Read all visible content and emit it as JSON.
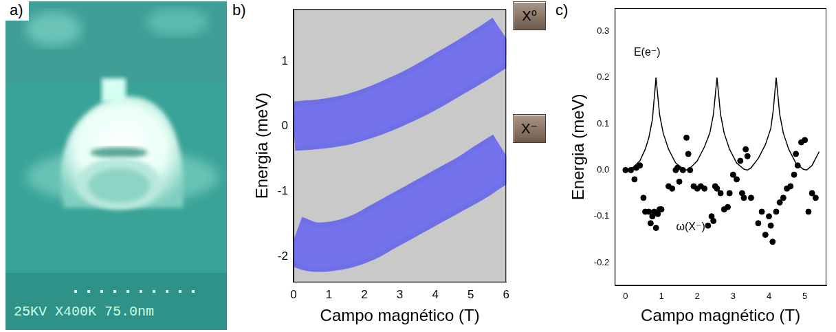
{
  "image_panel": {
    "label": "a)",
    "caption": "25KV X400K 75.0nm"
  },
  "chart_data": [
    {
      "label": "b)",
      "type": "line",
      "x_label": "Campo magnético (T)",
      "y_label": "Energia (meV)",
      "x": [
        0,
        0.5,
        1,
        1.5,
        2,
        2.5,
        3,
        3.5,
        4,
        4.5,
        5,
        5.5,
        6
      ],
      "series": [
        {
          "name": "X⁰",
          "color": "#ff2a1a",
          "values": [
            0.0,
            0.02,
            0.05,
            0.1,
            0.18,
            0.28,
            0.4,
            0.53,
            0.68,
            0.84,
            1.0,
            1.17,
            1.35
          ]
        },
        {
          "name": "X⁻",
          "color": "#ffa3a8",
          "values": [
            -1.75,
            -1.85,
            -1.85,
            -1.8,
            -1.7,
            -1.55,
            -1.4,
            -1.25,
            -1.1,
            -0.95,
            -0.8,
            -0.62,
            -0.45
          ]
        }
      ],
      "xlim": [
        0,
        6
      ],
      "xticks": [
        0,
        1,
        2,
        3,
        4,
        5,
        6
      ],
      "ylim": [
        -2.4,
        1.8
      ],
      "yticks": [
        -2,
        -1,
        0,
        1
      ],
      "grid": false
    },
    {
      "label": "c)",
      "type": "scatter",
      "x_label": "Campo magnético (T)",
      "y_label": "Energia (meV)",
      "series": [
        {
          "name": "E(e⁻)",
          "type": "line",
          "color": "#000000",
          "line_style": "solid",
          "x": [
            0,
            0.2,
            0.4,
            0.55,
            0.65,
            0.75,
            0.85,
            0.95,
            1.05,
            1.2,
            1.4,
            1.6,
            1.7,
            1.8,
            2.0,
            2.2,
            2.35,
            2.45,
            2.55,
            2.65,
            2.75,
            2.9,
            3.1,
            3.3,
            3.4,
            3.5,
            3.7,
            3.9,
            4.05,
            4.12,
            4.2,
            4.3,
            4.4,
            4.55,
            4.75,
            4.95,
            5.05,
            5.2,
            5.4
          ],
          "values": [
            0.0,
            0.005,
            0.02,
            0.045,
            0.07,
            0.11,
            0.2,
            0.12,
            0.08,
            0.045,
            0.015,
            0.003,
            0.0,
            0.004,
            0.02,
            0.05,
            0.08,
            0.12,
            0.2,
            0.12,
            0.08,
            0.045,
            0.015,
            0.002,
            0.0,
            0.005,
            0.025,
            0.055,
            0.09,
            0.13,
            0.2,
            0.12,
            0.08,
            0.045,
            0.015,
            0.002,
            0.0,
            0.01,
            0.04
          ]
        },
        {
          "name": "ω(X⁻)",
          "type": "scatter",
          "color": "#000000",
          "marker": "circle",
          "x": [
            0,
            0.15,
            0.25,
            0.3,
            0.4,
            0.5,
            0.55,
            0.65,
            0.7,
            0.75,
            0.8,
            0.85,
            0.9,
            0.95,
            1.0,
            1.2,
            1.3,
            1.4,
            1.45,
            1.5,
            1.6,
            1.7,
            1.75,
            1.8,
            1.9,
            2.0,
            2.1,
            2.2,
            2.3,
            2.4,
            2.45,
            2.5,
            2.55,
            2.65,
            2.75,
            2.85,
            2.9,
            3.0,
            3.1,
            3.2,
            3.25,
            3.3,
            3.35,
            3.4,
            3.5,
            3.7,
            3.8,
            3.9,
            4.0,
            4.05,
            4.1,
            4.2,
            4.3,
            4.4,
            4.5,
            4.6,
            4.7,
            4.75,
            4.8,
            4.9,
            5.0,
            5.1,
            5.2,
            5.3
          ],
          "values": [
            0,
            0,
            -0.02,
            0.005,
            0.01,
            -0.06,
            -0.09,
            -0.09,
            -0.115,
            -0.1,
            -0.09,
            -0.125,
            -0.095,
            -0.085,
            -0.085,
            -0.035,
            -0.04,
            0.0,
            0.005,
            -0.025,
            0.0,
            0.07,
            0.035,
            0.0,
            -0.035,
            -0.04,
            -0.035,
            -0.04,
            -0.12,
            -0.1,
            -0.11,
            -0.035,
            -0.04,
            -0.05,
            -0.085,
            -0.08,
            -0.05,
            -0.01,
            -0.02,
            0.02,
            -0.05,
            -0.06,
            0.045,
            0.03,
            -0.06,
            -0.115,
            -0.09,
            -0.14,
            -0.1,
            -0.12,
            -0.155,
            -0.09,
            -0.07,
            -0.06,
            -0.04,
            -0.035,
            -0.01,
            0.035,
            0.01,
            0.06,
            0.065,
            -0.09,
            -0.05,
            -0.06
          ]
        }
      ],
      "xlim": [
        -0.3,
        5.6
      ],
      "xticks": [
        0,
        1,
        2,
        3,
        4,
        5
      ],
      "ylim": [
        -0.25,
        0.35
      ],
      "yticks": [
        -0.2,
        -0.1,
        {
          "value": 0,
          "label": "0.0"
        },
        0.1,
        0.2,
        0.3
      ],
      "grid": false
    }
  ]
}
